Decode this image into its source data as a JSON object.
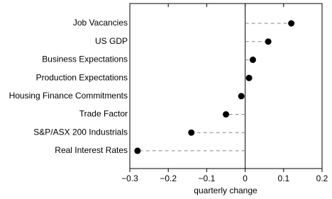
{
  "chart_data": {
    "type": "dot",
    "xlabel": "quarterly change",
    "categories": [
      "Job Vacancies",
      "US GDP",
      "Business Expectations",
      "Production Expectations",
      "Housing Finance Commitments",
      "Trade Factor",
      "S&P/ASX 200 Industrials",
      "Real Interest Rates"
    ],
    "values": [
      0.12,
      0.06,
      0.02,
      0.01,
      -0.01,
      -0.05,
      -0.14,
      -0.28
    ],
    "color": "#000000",
    "xlim": [
      -0.3,
      0.2
    ],
    "xticks": [
      {
        "value": -0.3,
        "label": "−0.3"
      },
      {
        "value": -0.2,
        "label": "−0.2"
      },
      {
        "value": -0.1,
        "label": "−0.1"
      },
      0,
      0.1,
      0.2
    ]
  }
}
